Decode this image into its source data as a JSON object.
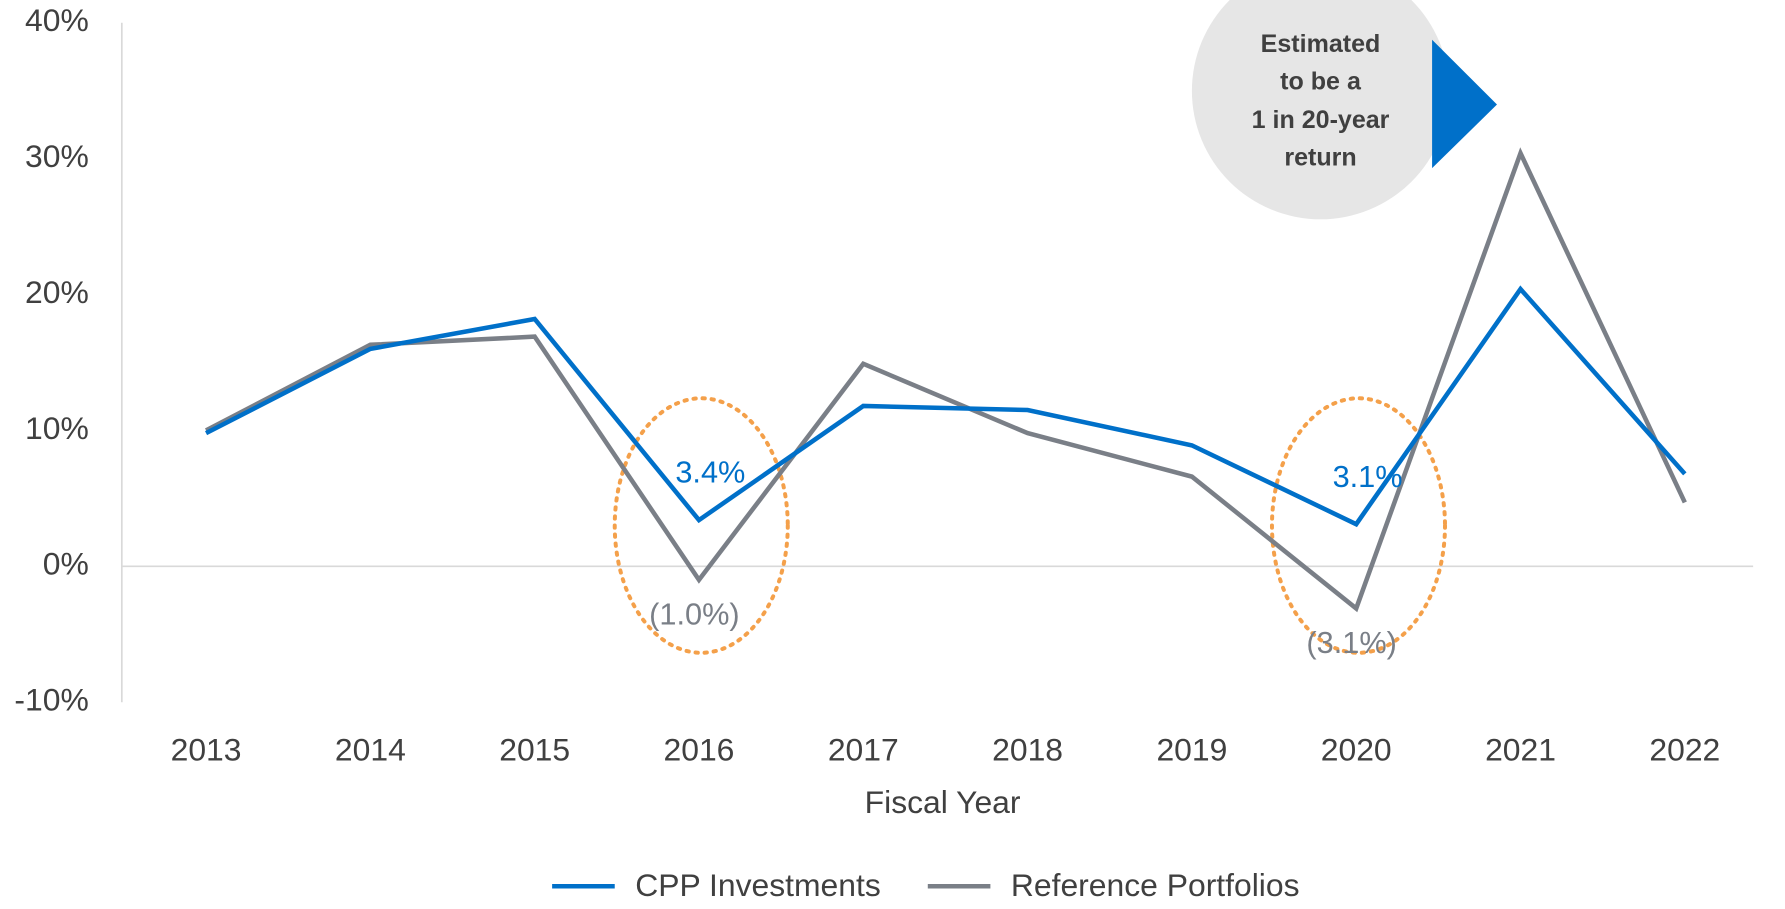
{
  "chart_data": {
    "type": "line",
    "x_label": "Fiscal Year",
    "categories": [
      "2013",
      "2014",
      "2015",
      "2016",
      "2017",
      "2018",
      "2019",
      "2020",
      "2021",
      "2022"
    ],
    "series": [
      {
        "name": "CPP Investments",
        "color": "#0070c9",
        "values": [
          9.8,
          16.0,
          18.2,
          3.4,
          11.8,
          11.5,
          8.9,
          3.1,
          20.4,
          6.8
        ],
        "value_labels": [
          null,
          null,
          null,
          "3.4%",
          null,
          null,
          null,
          "3.1%",
          null,
          null
        ]
      },
      {
        "name": "Reference Portfolios",
        "color": "#7a7f87",
        "values": [
          10.0,
          16.3,
          16.9,
          -1.0,
          14.9,
          9.8,
          6.6,
          -3.1,
          30.4,
          4.7
        ],
        "value_labels": [
          null,
          null,
          null,
          "(1.0%)",
          null,
          null,
          null,
          "(3.1%)",
          null,
          null
        ]
      }
    ],
    "ylim": [
      -10,
      40
    ],
    "yticks": [
      {
        "value": -10,
        "label": "-10%"
      },
      {
        "value": 0,
        "label": "0%"
      },
      {
        "value": 10,
        "label": "10%"
      },
      {
        "value": 20,
        "label": "20%"
      },
      {
        "value": 30,
        "label": "30%"
      },
      {
        "value": 40,
        "label": "40%"
      }
    ],
    "annotation": [
      "Estimated",
      "to be a",
      "1 in 20-year",
      "return"
    ],
    "legend": "bottom"
  }
}
